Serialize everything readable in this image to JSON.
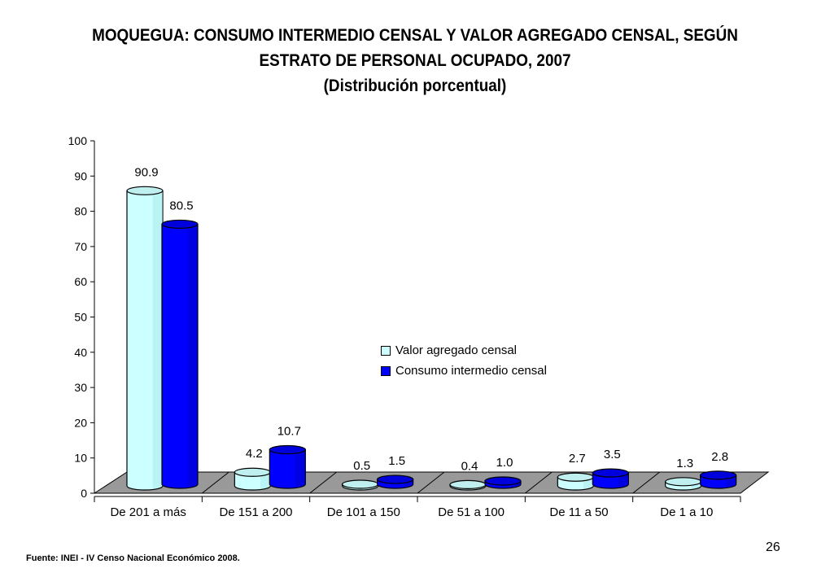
{
  "title": {
    "line1": "MOQUEGUA: CONSUMO INTERMEDIO CENSAL Y VALOR AGREGADO CENSAL, SEGÚN",
    "line2": "ESTRATO DE PERSONAL OCUPADO, 2007",
    "line3": "(Distribución porcentual)"
  },
  "chart_data": {
    "type": "bar",
    "style": "3d-cylinder",
    "categories": [
      "De 201 a más",
      "De 151 a 200",
      "De 101 a 150",
      "De 51 a 100",
      "De 11 a 50",
      "De 1 a 10"
    ],
    "series": [
      {
        "name": "Valor agregado censal",
        "color": "#CCFFFF",
        "values": [
          90.9,
          4.2,
          0.5,
          0.4,
          2.7,
          1.3
        ],
        "labels": [
          "90.9",
          "4.2",
          "0.5",
          "0.4",
          "2.7",
          "1.3"
        ]
      },
      {
        "name": "Consumo intermedio censal",
        "color": "#0000FF",
        "values": [
          80.5,
          10.7,
          1.5,
          1.0,
          3.5,
          2.8
        ],
        "labels": [
          "80.5",
          "10.7",
          "1.5",
          "1.0",
          "3.5",
          "2.8"
        ]
      }
    ],
    "yticks": [
      "0",
      "10",
      "20",
      "30",
      "40",
      "50",
      "60",
      "70",
      "80",
      "90",
      "100"
    ],
    "ylim": [
      0,
      100
    ],
    "floor_color": "#999999",
    "grid": false,
    "legend_position": "center-right"
  },
  "legend": {
    "items": [
      {
        "label": "Valor agregado censal",
        "color": "#CCFFFF"
      },
      {
        "label": "Consumo intermedio censal",
        "color": "#0000FF"
      }
    ]
  },
  "source": "Fuente: INEI - IV Censo Nacional Económico 2008.",
  "page_number": "26"
}
